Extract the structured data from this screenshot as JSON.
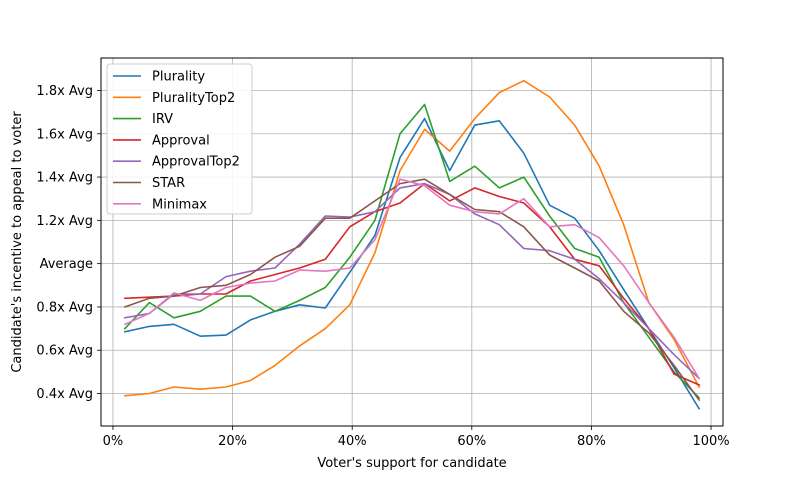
{
  "chart_data": {
    "type": "line",
    "title": "",
    "xlabel": "Voter's support for candidate",
    "ylabel": "Candidate's incentive to appeal to voter",
    "xlim": [
      -2,
      102
    ],
    "ylim": [
      0.25,
      1.95
    ],
    "grid": true,
    "legend_position": "top-left",
    "x_ticks": [
      {
        "value": 0,
        "label": "0%"
      },
      {
        "value": 20,
        "label": "20%"
      },
      {
        "value": 40,
        "label": "40%"
      },
      {
        "value": 60,
        "label": "60%"
      },
      {
        "value": 80,
        "label": "80%"
      },
      {
        "value": 100,
        "label": "100%"
      }
    ],
    "y_ticks": [
      {
        "value": 0.4,
        "label": "0.4x Avg"
      },
      {
        "value": 0.6,
        "label": "0.6x Avg"
      },
      {
        "value": 0.8,
        "label": "0.8x Avg"
      },
      {
        "value": 1.0,
        "label": "Average"
      },
      {
        "value": 1.2,
        "label": "1.2x Avg"
      },
      {
        "value": 1.4,
        "label": "1.4x Avg"
      },
      {
        "value": 1.6,
        "label": "1.6x Avg"
      },
      {
        "value": 1.8,
        "label": "1.8x Avg"
      }
    ],
    "x": [
      2,
      6.1,
      10.2,
      14.6,
      18.9,
      23,
      27.1,
      31.2,
      35.5,
      39.6,
      43.8,
      48,
      52.1,
      56.3,
      60.5,
      64.6,
      68.7,
      73,
      77.2,
      81.3,
      85.4,
      89.6,
      93.8,
      98
    ],
    "series": [
      {
        "name": "Plurality",
        "color": "#1f77b4",
        "values": [
          0.685,
          0.71,
          0.72,
          0.665,
          0.67,
          0.74,
          0.78,
          0.81,
          0.795,
          0.96,
          1.13,
          1.49,
          1.67,
          1.43,
          1.64,
          1.66,
          1.51,
          1.27,
          1.21,
          1.06,
          0.88,
          0.7,
          0.52,
          0.33
        ]
      },
      {
        "name": "PluralityTop2",
        "color": "#ff7f0e",
        "values": [
          0.39,
          0.4,
          0.43,
          0.42,
          0.43,
          0.46,
          0.53,
          0.62,
          0.7,
          0.81,
          1.05,
          1.43,
          1.62,
          1.52,
          1.67,
          1.79,
          1.845,
          1.77,
          1.64,
          1.45,
          1.18,
          0.82,
          0.65,
          0.43
        ]
      },
      {
        "name": "IRV",
        "color": "#2ca02c",
        "values": [
          0.7,
          0.82,
          0.75,
          0.78,
          0.85,
          0.85,
          0.78,
          0.83,
          0.89,
          1.03,
          1.2,
          1.6,
          1.735,
          1.38,
          1.45,
          1.35,
          1.4,
          1.22,
          1.07,
          1.03,
          0.82,
          0.66,
          0.5,
          0.38
        ]
      },
      {
        "name": "Approval",
        "color": "#d62728",
        "values": [
          0.84,
          0.845,
          0.85,
          0.86,
          0.86,
          0.92,
          0.95,
          0.98,
          1.02,
          1.17,
          1.24,
          1.28,
          1.37,
          1.29,
          1.35,
          1.31,
          1.28,
          1.17,
          1.02,
          0.99,
          0.84,
          0.7,
          0.49,
          0.44
        ]
      },
      {
        "name": "ApprovalTop2",
        "color": "#9467bd",
        "values": [
          0.75,
          0.77,
          0.86,
          0.86,
          0.94,
          0.965,
          0.98,
          1.09,
          1.22,
          1.215,
          1.24,
          1.35,
          1.37,
          1.32,
          1.23,
          1.18,
          1.07,
          1.06,
          1.02,
          0.93,
          0.82,
          0.7,
          0.58,
          0.47
        ]
      },
      {
        "name": "STAR",
        "color": "#8c564b",
        "values": [
          0.8,
          0.84,
          0.85,
          0.89,
          0.9,
          0.95,
          1.03,
          1.08,
          1.21,
          1.21,
          1.29,
          1.37,
          1.39,
          1.32,
          1.25,
          1.24,
          1.17,
          1.04,
          0.98,
          0.92,
          0.78,
          0.68,
          0.53,
          0.37
        ]
      },
      {
        "name": "Minimax",
        "color": "#e377c2",
        "values": [
          0.72,
          0.77,
          0.865,
          0.83,
          0.89,
          0.91,
          0.92,
          0.97,
          0.965,
          0.98,
          1.11,
          1.39,
          1.36,
          1.27,
          1.24,
          1.23,
          1.3,
          1.17,
          1.18,
          1.12,
          0.99,
          0.82,
          0.66,
          0.47
        ]
      }
    ]
  }
}
